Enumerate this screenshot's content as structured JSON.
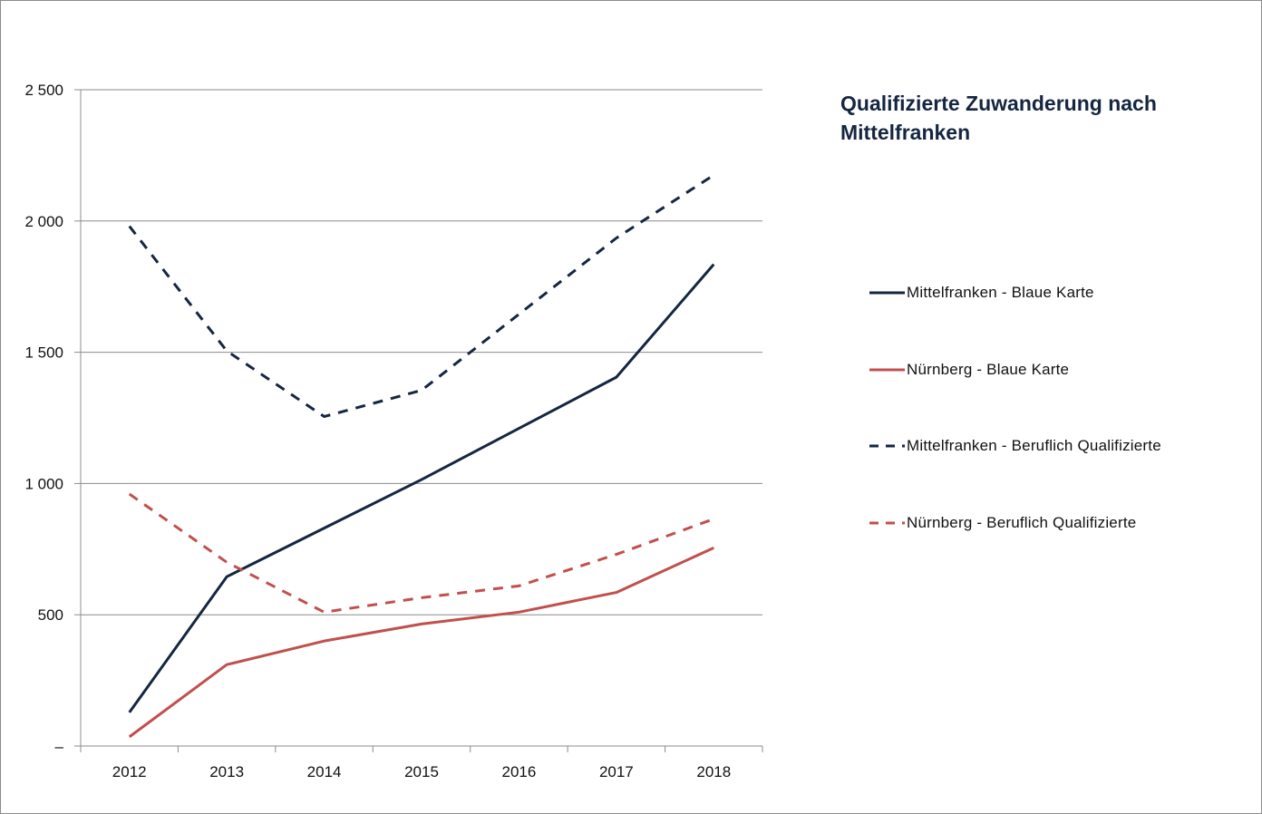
{
  "chart_data": {
    "type": "line",
    "title": "Qualifizierte Zuwanderung nach Mittelfranken",
    "xlabel": "",
    "ylabel": "",
    "x": [
      "2012",
      "2013",
      "2014",
      "2015",
      "2016",
      "2017",
      "2018"
    ],
    "ylim": [
      0,
      2500
    ],
    "yticks": [
      0,
      500,
      1000,
      1500,
      2000,
      2500
    ],
    "ytick_labels": [
      "–",
      "500",
      "1 000",
      "1 500",
      "2 000",
      "2 500"
    ],
    "grid": true,
    "legend_position": "right",
    "series": [
      {
        "name": "Mittelfranken - Blaue Karte",
        "color": "#142640",
        "style": "solid",
        "values": [
          128,
          645,
          830,
          1015,
          1210,
          1405,
          1835
        ]
      },
      {
        "name": "Nürnberg - Blaue Karte",
        "color": "#c0504d",
        "style": "solid",
        "values": [
          35,
          310,
          400,
          465,
          510,
          585,
          755
        ]
      },
      {
        "name": "Mittelfranken - Beruflich Qualifizierte",
        "color": "#142640",
        "style": "dashed",
        "values": [
          1980,
          1505,
          1255,
          1355,
          1645,
          1935,
          2175
        ]
      },
      {
        "name": "Nürnberg - Beruflich Qualifizierte",
        "color": "#c0504d",
        "style": "dashed",
        "values": [
          960,
          700,
          510,
          565,
          610,
          730,
          865
        ]
      }
    ]
  },
  "title_lines": [
    "Qualifizierte Zuwanderung nach",
    "Mittelfranken"
  ]
}
